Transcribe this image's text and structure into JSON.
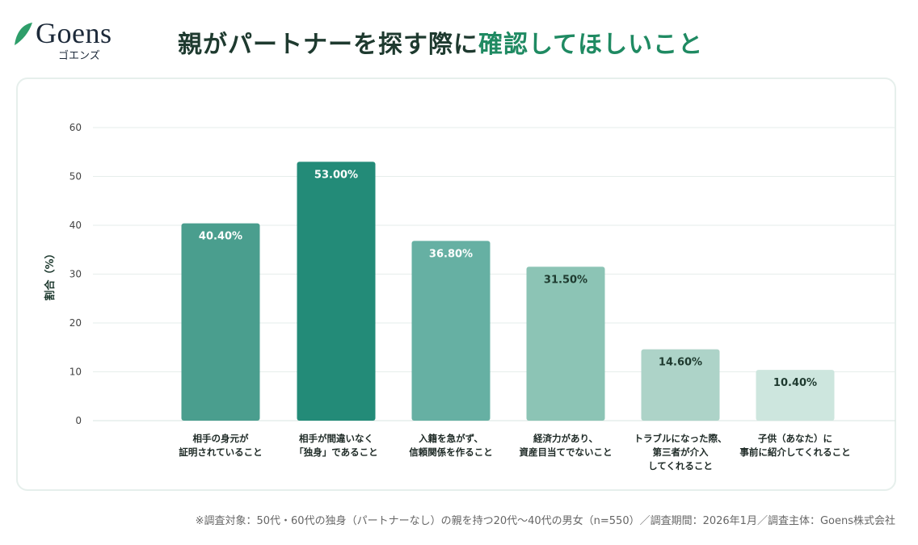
{
  "logo": {
    "word": "Goens",
    "sub": "ゴエンズ"
  },
  "title": {
    "main": "親がパートナーを探す際に",
    "accent": "確認してほしいこと"
  },
  "colors": {
    "accent": "#1f8a62",
    "title": "#1e3a2f"
  },
  "chart_data": {
    "type": "bar",
    "ylabel": "割合（%）",
    "ylim": [
      0,
      60
    ],
    "yticks": [
      0,
      10,
      20,
      30,
      40,
      50,
      60
    ],
    "grid": true,
    "categories": [
      [
        "相手の身元が",
        "証明されていること"
      ],
      [
        "相手が間違いなく",
        "「独身」であること"
      ],
      [
        "入籍を急がず、",
        "信頼関係を作ること"
      ],
      [
        "経済力があり、",
        "資産目当てでないこと"
      ],
      [
        "トラブルになった際、",
        "第三者が介入",
        "してくれること"
      ],
      [
        "子供（あなた）に",
        "事前に紹介してくれること"
      ]
    ],
    "values": [
      40.4,
      53.0,
      36.8,
      31.5,
      14.6,
      10.4
    ],
    "data_labels": [
      "40.40%",
      "53.00%",
      "36.80%",
      "31.50%",
      "14.60%",
      "10.40%"
    ],
    "bar_colors": [
      "#4a9e8e",
      "#238b78",
      "#66b0a3",
      "#8cc4b5",
      "#add3c8",
      "#cde6de"
    ],
    "label_colors": [
      "#ffffff",
      "#ffffff",
      "#ffffff",
      "#1e3a2f",
      "#1e3a2f",
      "#1e3a2f"
    ]
  },
  "footnote": "※調査対象：50代・60代の独身（パートナーなし）の親を持つ20代〜40代の男女（n=550）／調査期間：2026年1月／調査主体：Goens株式会社"
}
